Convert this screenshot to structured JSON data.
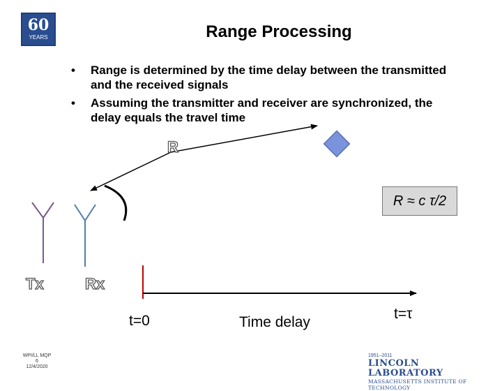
{
  "logo": {
    "number": "60",
    "label": "YEARS"
  },
  "title": "Range Processing",
  "bullets": [
    "Range is determined by the time delay between the transmitted and the received signals",
    "Assuming the transmitter and receiver are synchronized, the delay equals the travel time"
  ],
  "bullet_symbol": "•",
  "diagram": {
    "range_label": "R",
    "formula": "R ≈ c τ/2",
    "tx_label": "Tx",
    "rx_label": "Rx",
    "t0_label": "t=0",
    "delay_label": "Time delay",
    "tau_label": "t=τ",
    "colors": {
      "tx_antenna": "#7a5a8c",
      "rx_antenna": "#4f7fa6",
      "target": "#7b93dc",
      "pulse_marker": "#c00000"
    }
  },
  "footer": {
    "left_lines": [
      "WPI/LL MQP",
      "6",
      "12/4/2020"
    ],
    "lincoln_years": "1951–2011",
    "lincoln_name": "LINCOLN LABORATORY",
    "lincoln_sub": "MASSACHUSETTS INSTITUTE OF TECHNOLOGY"
  }
}
